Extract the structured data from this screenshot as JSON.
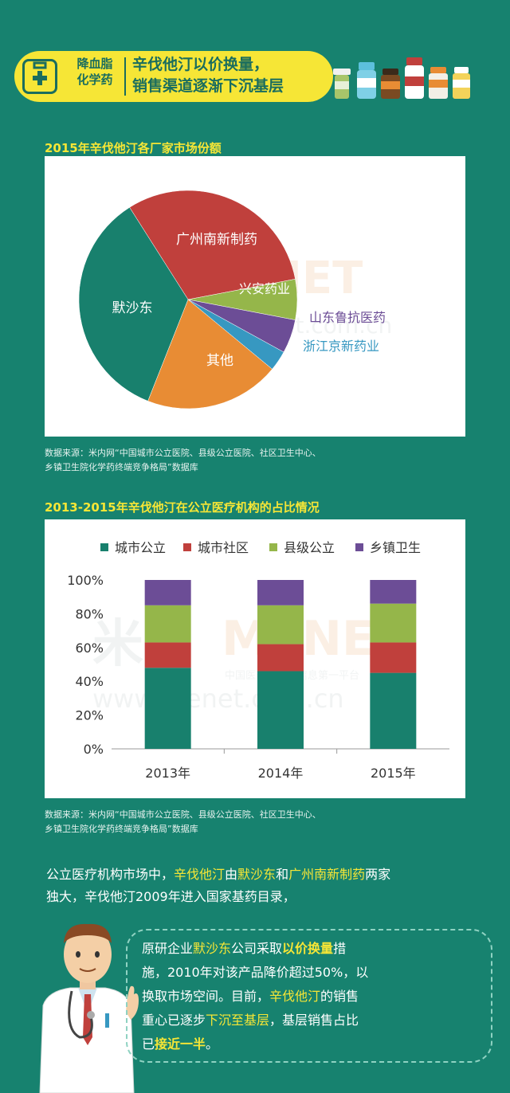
{
  "header": {
    "category_line1": "降血脂",
    "category_line2": "化学药",
    "title_line1": "辛伐他汀以价换量，",
    "title_line2": "销售渠道逐渐下沉基层",
    "medical_icon": "medical-kit-icon"
  },
  "pie_section": {
    "title": "2015年辛伐他汀各厂家市场份额"
  },
  "bar_section": {
    "title": "2013-2015年辛伐他汀在公立医疗机构的占比情况"
  },
  "source": {
    "line1": "数据来源：米内网“中国城市公立医院、县级公立医院、社区卫生中心、",
    "line2": "乡镇卫生院化学药终端竞争格局”数据库"
  },
  "watermark": {
    "brand_cn": "米内",
    "brand_en": "MENET",
    "url": "www.menet.com.cn",
    "tagline": "中国医药大健康信息第一平台"
  },
  "chart_data": [
    {
      "type": "pie",
      "title": "2015年辛伐他汀各厂家市场份额",
      "slices": [
        {
          "name": "广州南新制药",
          "value": 31,
          "color": "#c0403c"
        },
        {
          "name": "兴安药业",
          "value": 6,
          "color": "#95b64a"
        },
        {
          "name": "山东鲁抗医药",
          "value": 5,
          "color": "#6c4d96"
        },
        {
          "name": "浙江京新药业",
          "value": 3,
          "color": "#3798c1"
        },
        {
          "name": "其他",
          "value": 20,
          "color": "#e88c34"
        },
        {
          "name": "默沙东",
          "value": 35,
          "color": "#18806d"
        }
      ]
    },
    {
      "type": "bar",
      "stacked": true,
      "title": "2013-2015年辛伐他汀在公立医疗机构的占比情况",
      "categories": [
        "2013年",
        "2014年",
        "2015年"
      ],
      "series": [
        {
          "name": "城市公立",
          "values": [
            48,
            46,
            45
          ],
          "color": "#18806d"
        },
        {
          "name": "城市社区",
          "values": [
            15,
            16,
            18
          ],
          "color": "#c0403c"
        },
        {
          "name": "县级公立",
          "values": [
            22,
            23,
            23
          ],
          "color": "#95b64a"
        },
        {
          "name": "乡镇卫生",
          "values": [
            15,
            15,
            14
          ],
          "color": "#6c4d96"
        }
      ],
      "ylim": [
        0,
        100
      ],
      "yticks": [
        "0%",
        "20%",
        "40%",
        "60%",
        "80%",
        "100%"
      ],
      "legend": "top"
    }
  ],
  "paragraph": {
    "p1": "公立医疗机构市场中，",
    "p2": "辛伐他汀",
    "p3": "由",
    "p4": "默沙东",
    "p5": "和",
    "p6": "广州南新制药",
    "p7": "两家",
    "p8": "独大，辛伐他汀2009年进入国家基药目录，"
  },
  "bubble": {
    "b1": "原研企业",
    "b2": "默沙东",
    "b3": "公司采取",
    "b4": "以价换量",
    "b5": "措",
    "b6": "施，2010年对该产品降价超过50%，以",
    "b7": "换取市场空间。目前，",
    "b8": "辛伐他汀",
    "b9": "的销售",
    "b10": "重心已逐步",
    "b11": "下沉至基层",
    "b12": "，基层销售占比",
    "b13": "已",
    "b14": "接近一半",
    "b15": "。"
  }
}
